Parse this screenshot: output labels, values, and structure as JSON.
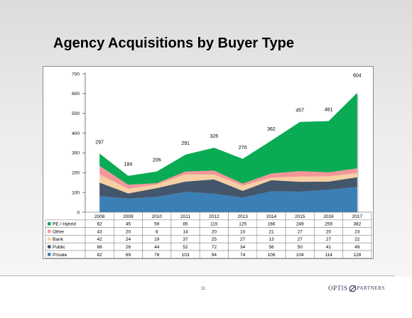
{
  "slide": {
    "title": "Agency Acquisitions by Buyer Type",
    "page_number": "11",
    "logo": {
      "word1": "OPTIS",
      "word2": "PARTNERS",
      "mark_color": "#2b3a4f"
    }
  },
  "chart_data": {
    "type": "area",
    "stacked": true,
    "title": "",
    "xlabel": "",
    "ylabel": "",
    "categories": [
      "2008",
      "2009",
      "2010",
      "2011",
      "2012",
      "2013",
      "2014",
      "2015",
      "2016",
      "2017"
    ],
    "yticks": [
      0,
      100,
      200,
      300,
      400,
      500,
      600,
      700
    ],
    "ylim": [
      0,
      700
    ],
    "grid": false,
    "legend": "data-table",
    "series": [
      {
        "name": "Private",
        "color": "#3a7fb5",
        "values": [
          82,
          69,
          78,
          103,
          94,
          74,
          106,
          104,
          114,
          128
        ]
      },
      {
        "name": "Public",
        "color": "#44566b",
        "values": [
          68,
          26,
          44,
          52,
          72,
          34,
          56,
          50,
          41,
          49
        ]
      },
      {
        "name": "Bank",
        "color": "#f6cfa4",
        "values": [
          42,
          24,
          19,
          37,
          25,
          27,
          13,
          27,
          27,
          22
        ]
      },
      {
        "name": "Other",
        "color": "#f4969a",
        "values": [
          43,
          20,
          6,
          14,
          20,
          10,
          21,
          27,
          20,
          23
        ]
      },
      {
        "name": "PE / Hybrid",
        "color": "#0aab55",
        "values": [
          62,
          45,
          59,
          85,
          115,
          125,
          166,
          249,
          259,
          382
        ]
      }
    ],
    "totals": [
      297,
      184,
      206,
      291,
      326,
      270,
      362,
      457,
      461,
      604
    ]
  }
}
